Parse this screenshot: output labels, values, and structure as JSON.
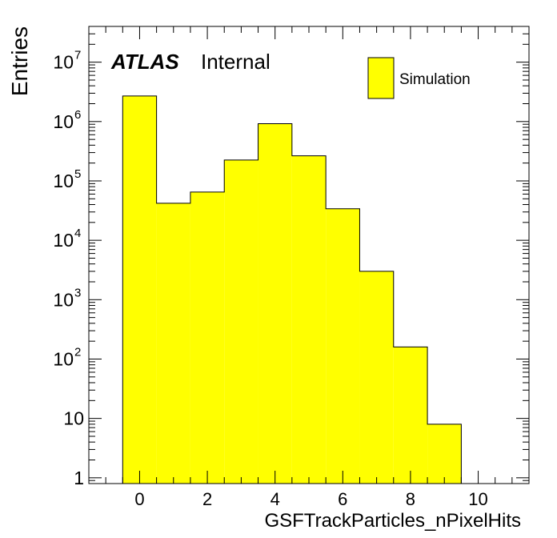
{
  "chart_data": {
    "type": "histogram",
    "log_y": true,
    "x": [
      0,
      1,
      2,
      3,
      4,
      5,
      6,
      7,
      8,
      9
    ],
    "bin_width": 1,
    "series": [
      {
        "name": "Simulation",
        "color": "#ffff00",
        "values": [
          2700000,
          42000,
          65000,
          225000,
          920000,
          265000,
          34000,
          3000,
          160,
          8
        ]
      }
    ],
    "xlabel": "GSFTrackParticles_nPixelHits",
    "ylabel": "Entries",
    "xlim": [
      -1.5,
      11.5
    ],
    "ylim": [
      0.8,
      40000000
    ],
    "x_ticks": [
      0,
      2,
      4,
      6,
      8,
      10
    ],
    "x_tick_labels": [
      "0",
      "2",
      "4",
      "6",
      "8",
      "10"
    ],
    "y_ticks": [
      1,
      10,
      100,
      1000,
      10000,
      100000,
      1000000,
      10000000
    ],
    "y_tick_labels": [
      {
        "base": "1",
        "exp": ""
      },
      {
        "base": "10",
        "exp": ""
      },
      {
        "base": "10",
        "exp": "2"
      },
      {
        "base": "10",
        "exp": "3"
      },
      {
        "base": "10",
        "exp": "4"
      },
      {
        "base": "10",
        "exp": "5"
      },
      {
        "base": "10",
        "exp": "6"
      },
      {
        "base": "10",
        "exp": "7"
      }
    ],
    "legend_position": "top-right",
    "atlas_label": "ATLAS",
    "atlas_status": "Internal",
    "grid": false
  }
}
